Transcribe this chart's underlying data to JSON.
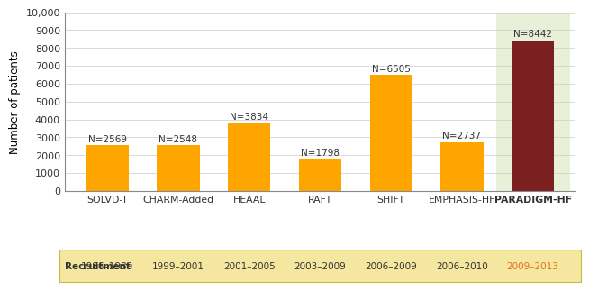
{
  "categories": [
    "SOLVD-T",
    "CHARM-Added",
    "HEAAL",
    "RAFT",
    "SHIFT",
    "EMPHASIS-HF",
    "PARADIGM-HF"
  ],
  "values": [
    2569,
    2548,
    3834,
    1798,
    6505,
    2737,
    8442
  ],
  "labels": [
    "N=2569",
    "N=2548",
    "N=3834",
    "N=1798",
    "N=6505",
    "N=2737",
    "N=8442"
  ],
  "bar_colors": [
    "#FFA500",
    "#FFA500",
    "#FFA500",
    "#FFA500",
    "#FFA500",
    "#FFA500",
    "#7B2020"
  ],
  "last_bar_bg": "#E8F0D8",
  "recruitment": [
    "1986–1989",
    "1999–2001",
    "2001–2005",
    "2003–2009",
    "2006–2009",
    "2006–2010",
    "2009–2013"
  ],
  "recruitment_label": "Recruitment",
  "ylabel": "Number of patients",
  "ylim": [
    0,
    10000
  ],
  "yticks": [
    0,
    1000,
    2000,
    3000,
    4000,
    5000,
    6000,
    7000,
    8000,
    9000,
    10000
  ],
  "ytick_labels": [
    "0",
    "1000",
    "2000",
    "3000",
    "4000",
    "5000",
    "6000",
    "7000",
    "8000",
    "9000",
    "10,000"
  ],
  "paradigm_color": "#E07020",
  "recruitment_bg": "#F5E6A0",
  "recruitment_border": "#C8B850",
  "bar_orange": "#FFA500"
}
